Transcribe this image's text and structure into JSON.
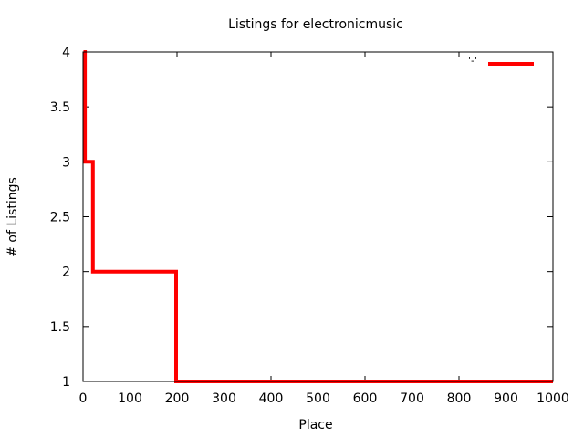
{
  "chart_data": {
    "type": "line",
    "title": "Listings for electronicmusic",
    "xlabel": "Place",
    "ylabel": "# of Listings",
    "xlim": [
      0,
      1000
    ],
    "ylim": [
      1,
      4
    ],
    "x_ticks": [
      "0",
      "100",
      "200",
      "300",
      "400",
      "500",
      "600",
      "700",
      "800",
      "900",
      "1000"
    ],
    "y_ticks": [
      "1",
      "1.5",
      "2",
      "2.5",
      "3",
      "3.5",
      "4"
    ],
    "legend": {
      "position": "top-right",
      "label": "'-'"
    },
    "series": [
      {
        "color": "#ff0000",
        "style": "steps",
        "points": [
          [
            1,
            4
          ],
          [
            4,
            4
          ],
          [
            4,
            3
          ],
          [
            21,
            3
          ],
          [
            21,
            2
          ],
          [
            198,
            2
          ],
          [
            198,
            1
          ],
          [
            1000,
            1
          ]
        ]
      }
    ]
  }
}
